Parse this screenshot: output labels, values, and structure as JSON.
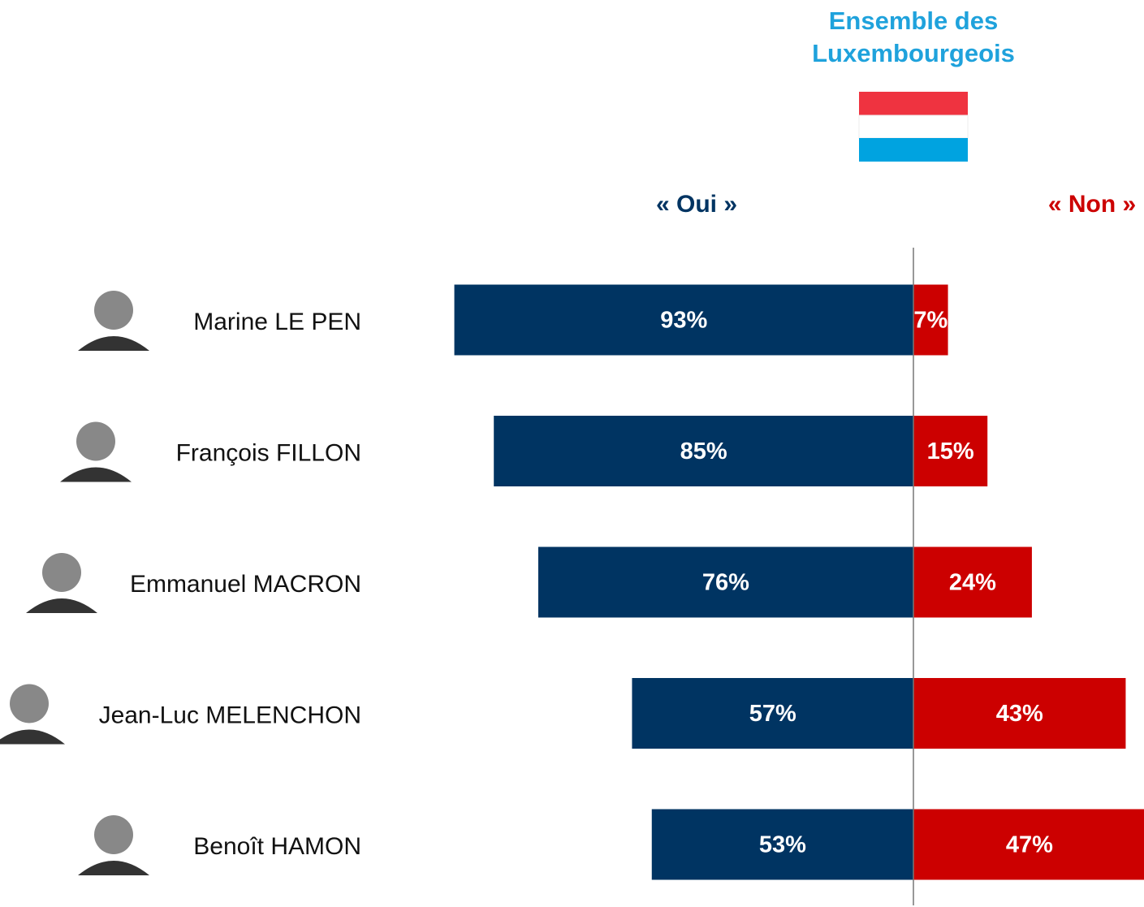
{
  "chart_data": {
    "type": "diverging-bar",
    "title": "Ensemble des Luxembourgeois",
    "categories": [
      "Marine LE PEN",
      "François FILLON",
      "Emmanuel MACRON",
      "Jean-Luc MELENCHON",
      "Benoît HAMON"
    ],
    "series": [
      {
        "name": "« Oui »",
        "color": "#003462",
        "values": [
          93,
          85,
          76,
          57,
          53
        ],
        "value_labels": [
          "93%",
          "85%",
          "76%",
          "57%",
          "53%"
        ]
      },
      {
        "name": "« Non »",
        "color": "#cc0000",
        "values": [
          7,
          15,
          24,
          43,
          47
        ],
        "value_labels": [
          "7%",
          "15%",
          "24%",
          "43%",
          "47%"
        ]
      }
    ]
  }
}
